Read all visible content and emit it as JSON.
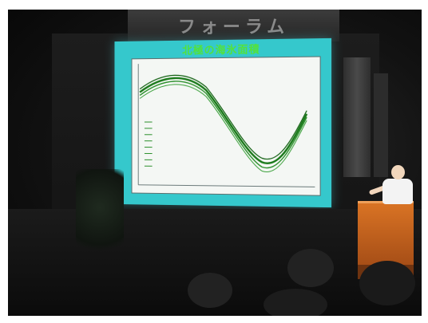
{
  "scene": {
    "description_free": true
  },
  "banner": {
    "text": "フォーラム"
  },
  "slide": {
    "title": "北極の海氷面積",
    "plot_caption": "",
    "footer": "",
    "colors": {
      "screen": "#35c8cc",
      "title": "#53e23a",
      "series": "#1b7a1b"
    }
  }
}
